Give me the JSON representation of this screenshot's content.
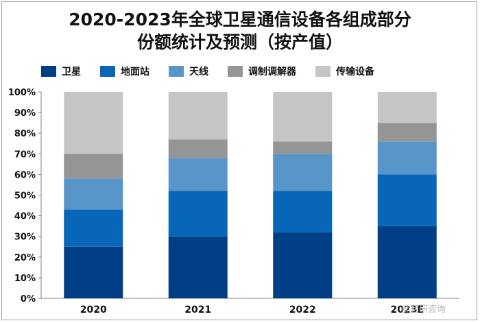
{
  "title_line1": "2020-2023年全球卫星通信设备各组成部分",
  "title_line2": "份额统计及预测（按产值）",
  "watermark": "@智研咨询",
  "chart_data": {
    "type": "bar",
    "stacked": true,
    "title": "2020-2023年全球卫星通信设备各组成部分份额统计及预测（按产值）",
    "categories": [
      "2020",
      "2021",
      "2022",
      "2023E"
    ],
    "series": [
      {
        "name": "卫星",
        "color": "#003f86",
        "values": [
          25,
          30,
          32,
          35
        ]
      },
      {
        "name": "地面站",
        "color": "#0866b8",
        "values": [
          18,
          22,
          20,
          25
        ]
      },
      {
        "name": "天线",
        "color": "#5896c9",
        "values": [
          15,
          16,
          18,
          16
        ]
      },
      {
        "name": "调制调解器",
        "color": "#959595",
        "values": [
          12,
          9,
          6,
          9
        ]
      },
      {
        "name": "传输设备",
        "color": "#c5c5c5",
        "values": [
          30,
          23,
          24,
          15
        ]
      }
    ],
    "ylim": [
      0,
      100
    ],
    "yticks": [
      "0%",
      "10%",
      "20%",
      "30%",
      "40%",
      "50%",
      "60%",
      "70%",
      "80%",
      "90%",
      "100%"
    ],
    "xlabel": "",
    "ylabel": "",
    "legend": "top"
  }
}
